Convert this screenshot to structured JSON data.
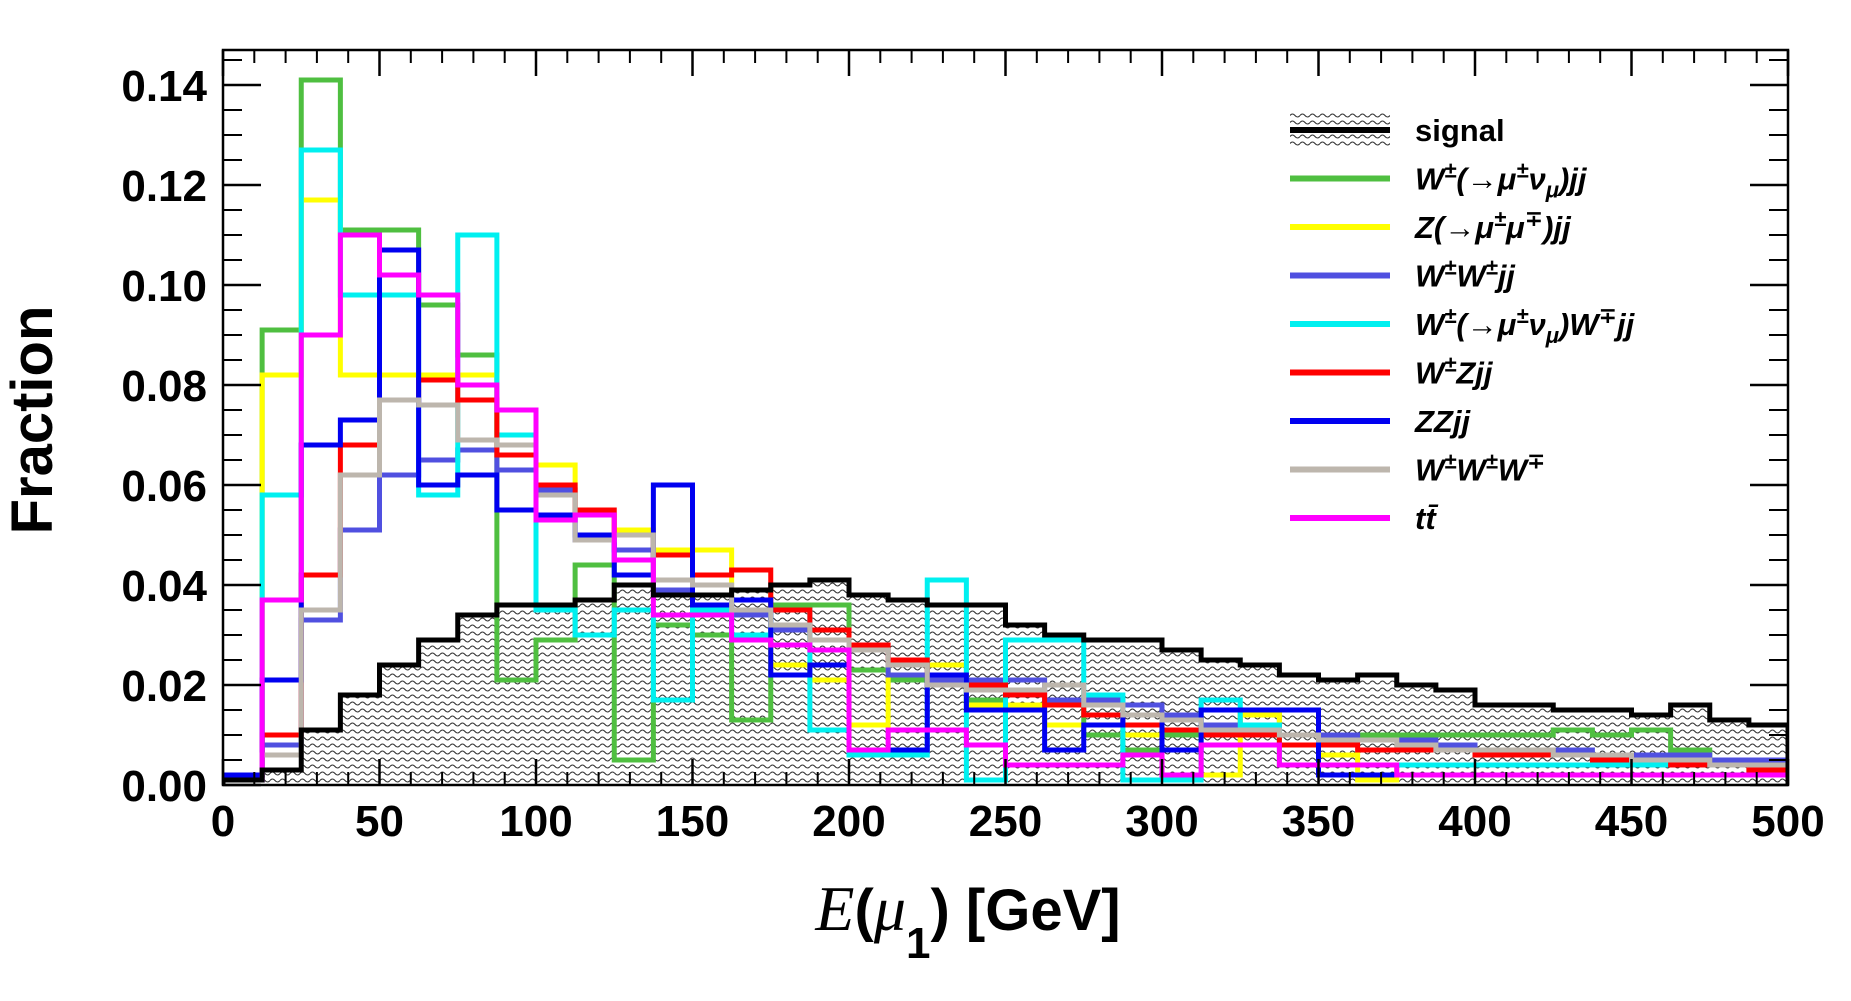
{
  "chart_data": {
    "type": "histogram",
    "xlabel_italic": "E",
    "xlabel_open": "(",
    "xlabel_mu": "μ",
    "xlabel_sub": "1",
    "xlabel_close": ")",
    "xlabel_units": "[GeV]",
    "ylabel": "Fraction",
    "xlim": [
      0,
      500
    ],
    "ylim": [
      0,
      0.147
    ],
    "xticks": [
      0,
      50,
      100,
      150,
      200,
      250,
      300,
      350,
      400,
      450,
      500
    ],
    "xtick_labels": [
      "0",
      "50",
      "100",
      "150",
      "200",
      "250",
      "300",
      "350",
      "400",
      "450",
      "500"
    ],
    "yticks": [
      0,
      0.02,
      0.04,
      0.06,
      0.08,
      0.1,
      0.12,
      0.14
    ],
    "ytick_labels": [
      "0.00",
      "0.02",
      "0.04",
      "0.06",
      "0.08",
      "0.10",
      "0.12",
      "0.14"
    ],
    "bin_edges": [
      0,
      12.5,
      25,
      37.5,
      50,
      62.5,
      75,
      87.5,
      100,
      112.5,
      125,
      137.5,
      150,
      162.5,
      175,
      187.5,
      200,
      212.5,
      225,
      237.5,
      250,
      262.5,
      275,
      287.5,
      300,
      312.5,
      325,
      337.5,
      350,
      362.5,
      375,
      387.5,
      400,
      412.5,
      425,
      437.5,
      450,
      462.5,
      475,
      487.5,
      500
    ],
    "series": [
      {
        "name": "signal",
        "color": "#000000",
        "fill": true,
        "values": [
          0.001,
          0.003,
          0.011,
          0.018,
          0.024,
          0.029,
          0.034,
          0.036,
          0.036,
          0.037,
          0.04,
          0.038,
          0.038,
          0.039,
          0.04,
          0.041,
          0.038,
          0.037,
          0.036,
          0.036,
          0.032,
          0.03,
          0.029,
          0.029,
          0.027,
          0.025,
          0.024,
          0.022,
          0.021,
          0.022,
          0.02,
          0.019,
          0.016,
          0.016,
          0.015,
          0.015,
          0.014,
          0.016,
          0.013,
          0.012,
          0.011
        ]
      },
      {
        "name": "W±(→μ±νμ)jj",
        "color": "#4fbf40",
        "values": [
          0.002,
          0.091,
          0.141,
          0.111,
          0.111,
          0.096,
          0.086,
          0.021,
          0.029,
          0.044,
          0.005,
          0.032,
          0.03,
          0.013,
          0.036,
          0.036,
          0.023,
          0.021,
          0.022,
          0.017,
          0.016,
          0.016,
          0.01,
          0.007,
          0.01,
          0.01,
          0.014,
          0.01,
          0.009,
          0.01,
          0.01,
          0.01,
          0.01,
          0.01,
          0.011,
          0.01,
          0.011,
          0.007,
          0.004,
          0.004,
          0.003
        ]
      },
      {
        "name": "Z(→μ±μ∓)jj",
        "color": "#ffff00",
        "values": [
          0.002,
          0.082,
          0.117,
          0.082,
          0.082,
          0.082,
          0.082,
          0.07,
          0.064,
          0.054,
          0.051,
          0.047,
          0.047,
          0.039,
          0.024,
          0.021,
          0.012,
          0.024,
          0.024,
          0.016,
          0.016,
          0.012,
          0.012,
          0.01,
          0.002,
          0.002,
          0.014,
          0.004,
          0.006,
          0.001,
          0.004,
          0.004,
          0.004,
          0.004,
          0.004,
          0.004,
          0.004,
          0.004,
          0.004,
          0.004,
          0.004
        ]
      },
      {
        "name": "W±W±jj",
        "color": "#5050e0",
        "values": [
          0.001,
          0.008,
          0.033,
          0.051,
          0.062,
          0.065,
          0.067,
          0.063,
          0.059,
          0.049,
          0.047,
          0.039,
          0.036,
          0.034,
          0.031,
          0.029,
          0.027,
          0.022,
          0.021,
          0.021,
          0.021,
          0.017,
          0.017,
          0.016,
          0.014,
          0.012,
          0.012,
          0.01,
          0.01,
          0.009,
          0.009,
          0.008,
          0.007,
          0.007,
          0.007,
          0.006,
          0.006,
          0.006,
          0.005,
          0.005,
          0.005
        ]
      },
      {
        "name": "W±(→μ±νμ)W∓jj",
        "color": "#00f0f0",
        "values": [
          0.002,
          0.058,
          0.127,
          0.098,
          0.098,
          0.058,
          0.11,
          0.07,
          0.035,
          0.03,
          0.035,
          0.017,
          0.035,
          0.03,
          0.035,
          0.011,
          0.006,
          0.006,
          0.041,
          0.001,
          0.029,
          0.029,
          0.018,
          0.001,
          0.001,
          0.017,
          0.012,
          0.004,
          0.004,
          0.004,
          0.004,
          0.004,
          0.004,
          0.004,
          0.004,
          0.004,
          0.004,
          0.004,
          0.004,
          0.004,
          0.004
        ]
      },
      {
        "name": "W±Zjj",
        "color": "#ff0000",
        "values": [
          0.002,
          0.01,
          0.042,
          0.068,
          0.077,
          0.081,
          0.077,
          0.066,
          0.06,
          0.055,
          0.05,
          0.046,
          0.042,
          0.043,
          0.035,
          0.031,
          0.028,
          0.025,
          0.02,
          0.02,
          0.018,
          0.016,
          0.014,
          0.012,
          0.011,
          0.01,
          0.01,
          0.008,
          0.008,
          0.007,
          0.007,
          0.007,
          0.006,
          0.006,
          0.006,
          0.005,
          0.005,
          0.004,
          0.004,
          0.003,
          0.003
        ]
      },
      {
        "name": "ZZjj",
        "color": "#0000f0",
        "values": [
          0.002,
          0.021,
          0.068,
          0.073,
          0.107,
          0.06,
          0.062,
          0.055,
          0.054,
          0.05,
          0.042,
          0.06,
          0.036,
          0.037,
          0.022,
          0.024,
          0.007,
          0.007,
          0.022,
          0.015,
          0.015,
          0.007,
          0.012,
          0.014,
          0.007,
          0.015,
          0.015,
          0.015,
          0.002,
          0.002,
          0.002,
          0.002,
          0.002,
          0.002,
          0.002,
          0.002,
          0.002,
          0.002,
          0.002,
          0.002,
          0.002
        ]
      },
      {
        "name": "W±W±W∓",
        "color": "#bdb6ad",
        "values": [
          0.001,
          0.006,
          0.035,
          0.062,
          0.077,
          0.076,
          0.069,
          0.068,
          0.058,
          0.049,
          0.05,
          0.041,
          0.04,
          0.035,
          0.032,
          0.029,
          0.027,
          0.024,
          0.02,
          0.019,
          0.019,
          0.02,
          0.016,
          0.014,
          0.013,
          0.011,
          0.011,
          0.01,
          0.009,
          0.009,
          0.008,
          0.007,
          0.007,
          0.007,
          0.006,
          0.006,
          0.005,
          0.005,
          0.004,
          0.004,
          0.003
        ]
      },
      {
        "name": "tt̄",
        "color": "#ff00ff",
        "values": [
          0.001,
          0.037,
          0.09,
          0.11,
          0.102,
          0.098,
          0.08,
          0.075,
          0.053,
          0.054,
          0.045,
          0.034,
          0.034,
          0.029,
          0.028,
          0.027,
          0.007,
          0.011,
          0.011,
          0.008,
          0.004,
          0.004,
          0.004,
          0.006,
          0.002,
          0.008,
          0.008,
          0.004,
          0.004,
          0.004,
          0.002,
          0.002,
          0.002,
          0.002,
          0.002,
          0.002,
          0.002,
          0.002,
          0.002,
          0.002,
          0.002
        ]
      }
    ]
  },
  "legend": [
    {
      "key": "signal",
      "color": "#000000",
      "fill": true,
      "base": "signal",
      "italic": false
    },
    {
      "key": "wmuv",
      "color": "#4fbf40",
      "base": "W",
      "sup1": "±",
      "mid": "(→μ",
      "sup2": "±",
      "mid2": "ν",
      "sub": "μ",
      "tail": ")jj",
      "italic": true
    },
    {
      "key": "zmumu",
      "color": "#ffff00",
      "base": "Z(→μ",
      "sup1": "±",
      "mid": "μ",
      "sup2": "∓",
      "tail": ")jj",
      "italic": true
    },
    {
      "key": "ww",
      "color": "#5050e0",
      "base": "W",
      "sup1": "±",
      "mid": "W",
      "sup2": "±",
      "tail": "jj",
      "italic": true
    },
    {
      "key": "wwos",
      "color": "#00f0f0",
      "base": "W",
      "sup1": "±",
      "mid": "(→μ",
      "sup2": "±",
      "mid2": "ν",
      "sub": "μ",
      "tail": ")W",
      "sup3": "∓",
      "tail2": "jj",
      "italic": true
    },
    {
      "key": "wz",
      "color": "#ff0000",
      "base": "W",
      "sup1": "±",
      "tail": "Zjj",
      "italic": true
    },
    {
      "key": "zz",
      "color": "#0000f0",
      "base": "ZZjj",
      "italic": true
    },
    {
      "key": "www",
      "color": "#bdb6ad",
      "base": "W",
      "sup1": "±",
      "mid": "W",
      "sup2": "±",
      "tail": "W",
      "sup3": "∓",
      "italic": true
    },
    {
      "key": "tt",
      "color": "#ff00ff",
      "base": "tt̄",
      "italic": true
    }
  ]
}
